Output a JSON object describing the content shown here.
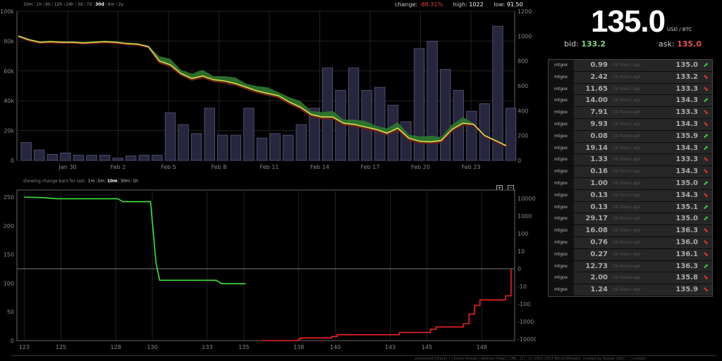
{
  "ranges": [
    "10m",
    "1h",
    "6h",
    "12h",
    "24h",
    "3d",
    "7d",
    "30d",
    "6m",
    "2y"
  ],
  "active_range": "30d",
  "stats": {
    "change_label": "change:",
    "change": "-88.31%",
    "high_label": "high:",
    "high": "1022",
    "low_label": "low:",
    "low": "91.50"
  },
  "ticker": {
    "price": "135.0",
    "unit": "USD / BTC",
    "bid_label": "bid:",
    "bid": "133.2",
    "ask_label": "ask:",
    "ask": "135.0"
  },
  "trades": [
    {
      "exchange": "mtgox",
      "amount": "0.99",
      "ago": "19 hours ago",
      "price": "135.0",
      "dir": "up"
    },
    {
      "exchange": "mtgox",
      "amount": "2.42",
      "ago": "19 hours ago",
      "price": "133.2",
      "dir": "down"
    },
    {
      "exchange": "mtgox",
      "amount": "11.65",
      "ago": "19 hours ago",
      "price": "133.3",
      "dir": "down"
    },
    {
      "exchange": "mtgox",
      "amount": "14.00",
      "ago": "19 hours ago",
      "price": "134.3",
      "dir": "up"
    },
    {
      "exchange": "mtgox",
      "amount": "7.91",
      "ago": "19 hours ago",
      "price": "133.3",
      "dir": "down"
    },
    {
      "exchange": "mtgox",
      "amount": "9.93",
      "ago": "19 hours ago",
      "price": "134.3",
      "dir": "down"
    },
    {
      "exchange": "mtgox",
      "amount": "0.08",
      "ago": "19 hours ago",
      "price": "135.9",
      "dir": "up"
    },
    {
      "exchange": "mtgox",
      "amount": "19.14",
      "ago": "19 hours ago",
      "price": "134.3",
      "dir": "up"
    },
    {
      "exchange": "mtgox",
      "amount": "1.33",
      "ago": "19 hours ago",
      "price": "133.3",
      "dir": "down"
    },
    {
      "exchange": "mtgox",
      "amount": "0.16",
      "ago": "19 hours ago",
      "price": "134.3",
      "dir": "down"
    },
    {
      "exchange": "mtgox",
      "amount": "1.00",
      "ago": "19 hours ago",
      "price": "135.0",
      "dir": "up"
    },
    {
      "exchange": "mtgox",
      "amount": "0.13",
      "ago": "19 hours ago",
      "price": "134.3",
      "dir": "down"
    },
    {
      "exchange": "mtgox",
      "amount": "0.13",
      "ago": "19 hours ago",
      "price": "135.1",
      "dir": "up"
    },
    {
      "exchange": "mtgox",
      "amount": "29.17",
      "ago": "19 hours ago",
      "price": "135.0",
      "dir": "up"
    },
    {
      "exchange": "mtgox",
      "amount": "16.08",
      "ago": "19 hours ago",
      "price": "136.3",
      "dir": "down"
    },
    {
      "exchange": "mtgox",
      "amount": "0.76",
      "ago": "19 hours ago",
      "price": "136.0",
      "dir": "down"
    },
    {
      "exchange": "mtgox",
      "amount": "0.27",
      "ago": "19 hours ago",
      "price": "136.1",
      "dir": "down"
    },
    {
      "exchange": "mtgox",
      "amount": "12.73",
      "ago": "19 hours ago",
      "price": "136.3",
      "dir": "up"
    },
    {
      "exchange": "mtgox",
      "amount": "2.00",
      "ago": "19 hours ago",
      "price": "135.8",
      "dir": "down"
    },
    {
      "exchange": "mtgox",
      "amount": "1.24",
      "ago": "19 hours ago",
      "price": "135.9",
      "dir": "down"
    }
  ],
  "changebar": {
    "label": "showing change bars for last:",
    "options": [
      "1m",
      "5m",
      "10m",
      "30m",
      "1h"
    ],
    "active": "10m",
    "zoom_in": "+",
    "zoom_out": "−"
  },
  "footer": "connected (check) • | forum thread | address (help) | 1ML...(1) | (c) 2011-2013 BitcoinWisdom, created by Kaspar (dot) ... | contact",
  "chart_data": [
    {
      "type": "line",
      "title": "",
      "x_ticks": [
        "Jan 30",
        "Feb 2",
        "Feb 5",
        "Feb 8",
        "Feb 11",
        "Feb 14",
        "Feb 17",
        "Feb 20",
        "Feb 23"
      ],
      "y_left_ticks": [
        "0",
        "20k",
        "40k",
        "60k",
        "80k",
        "100k"
      ],
      "y_right_ticks": [
        "0",
        "200",
        "400",
        "600",
        "800",
        "1000",
        "1200"
      ],
      "ylim_left": [
        0,
        100000
      ],
      "ylim_right": [
        0,
        1200
      ],
      "volume": [
        12000,
        7000,
        4000,
        5000,
        3500,
        3500,
        3500,
        1500,
        3000,
        3500,
        3500,
        32000,
        24000,
        18000,
        35000,
        17000,
        17000,
        35000,
        15000,
        18000,
        17000,
        24000,
        35000,
        62000,
        47000,
        62000,
        47000,
        49000,
        37000,
        26000,
        75000,
        80000,
        61000,
        47000,
        33000,
        38000,
        90000,
        35000
      ],
      "price": [
        1000,
        970,
        950,
        955,
        950,
        950,
        945,
        950,
        955,
        950,
        940,
        935,
        915,
        800,
        770,
        700,
        660,
        680,
        650,
        640,
        620,
        590,
        560,
        540,
        520,
        470,
        430,
        370,
        350,
        350,
        300,
        290,
        270,
        250,
        220,
        260,
        180,
        155,
        150,
        160,
        250,
        300,
        290,
        200,
        160,
        118
      ],
      "grid": true
    },
    {
      "type": "line",
      "title": "",
      "x_ticks": [
        "123",
        "125",
        "128",
        "130",
        "133",
        "135",
        "138",
        "140",
        "143",
        "145",
        "148"
      ],
      "y_left_ticks": [
        "0",
        "50",
        "100",
        "150",
        "200",
        "250"
      ],
      "y_right_ticks": [
        "-10000",
        "-1000",
        "-100",
        "-10",
        "0",
        "10",
        "100",
        "1000",
        "10000"
      ],
      "series": [
        {
          "name": "",
          "color": "#3ee43e",
          "x": [
            123,
            124,
            124.8,
            128.1,
            128.4,
            129.9,
            130.2,
            130.4,
            133.5,
            133.8,
            135.1
          ],
          "y": [
            250,
            249,
            247,
            247,
            242,
            242,
            135,
            105,
            105,
            99,
            99
          ]
        },
        {
          "name": "",
          "color": "#ee2222",
          "x": [
            136,
            136.3,
            138,
            138.1,
            139.8,
            140.1,
            143.5,
            145.2,
            145.5,
            147,
            147.3,
            147.6,
            147.9,
            149.3,
            149.6
          ],
          "y": [
            -10000,
            -9000,
            -7000,
            -6000,
            -5000,
            -4000,
            -3000,
            -2000,
            -1500,
            -1000,
            -300,
            -100,
            -50,
            -30,
            1
          ]
        }
      ],
      "grid": true
    }
  ]
}
